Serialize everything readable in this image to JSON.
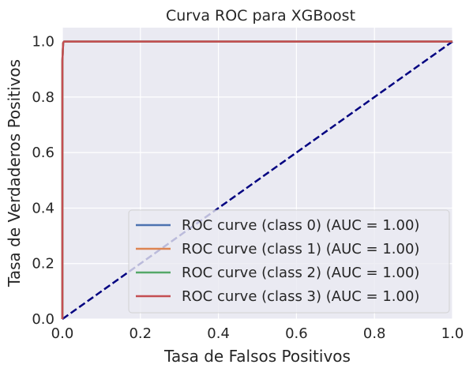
{
  "chart_data": {
    "type": "line",
    "title": "Curva ROC para XGBoost",
    "xlabel": "Tasa de Falsos Positivos",
    "ylabel": "Tasa de Verdaderos Positivos",
    "xlim": [
      0.0,
      1.0
    ],
    "ylim": [
      0.0,
      1.05
    ],
    "xticks": [
      "0.0",
      "0.2",
      "0.4",
      "0.6",
      "0.8",
      "1.0"
    ],
    "yticks": [
      "0.0",
      "0.2",
      "0.4",
      "0.6",
      "0.8",
      "1.0"
    ],
    "grid": true,
    "legend_position": "lower-right",
    "series": [
      {
        "name": "ROC curve (class 0) (AUC = 1.00)",
        "color": "#4c72b0",
        "x": [
          0.0,
          0.0,
          0.002,
          0.004,
          1.0
        ],
        "y": [
          0.0,
          0.93,
          0.995,
          1.0,
          1.0
        ]
      },
      {
        "name": "ROC curve (class 1) (AUC = 1.00)",
        "color": "#dd8452",
        "x": [
          0.0,
          0.0,
          0.002,
          0.004,
          1.0
        ],
        "y": [
          0.0,
          0.93,
          0.995,
          1.0,
          1.0
        ]
      },
      {
        "name": "ROC curve (class 2) (AUC = 1.00)",
        "color": "#55a868",
        "x": [
          0.0,
          0.0,
          0.002,
          0.004,
          1.0
        ],
        "y": [
          0.0,
          0.93,
          0.995,
          1.0,
          1.0
        ]
      },
      {
        "name": "ROC curve (class 3) (AUC = 1.00)",
        "color": "#c44e52",
        "x": [
          0.0,
          0.0,
          0.002,
          0.004,
          1.0
        ],
        "y": [
          0.0,
          0.93,
          0.995,
          1.0,
          1.0
        ]
      }
    ],
    "reference_line": {
      "x": [
        0.0,
        1.0
      ],
      "y": [
        0.0,
        1.0
      ],
      "color": "#000080",
      "style": "dashed"
    }
  }
}
